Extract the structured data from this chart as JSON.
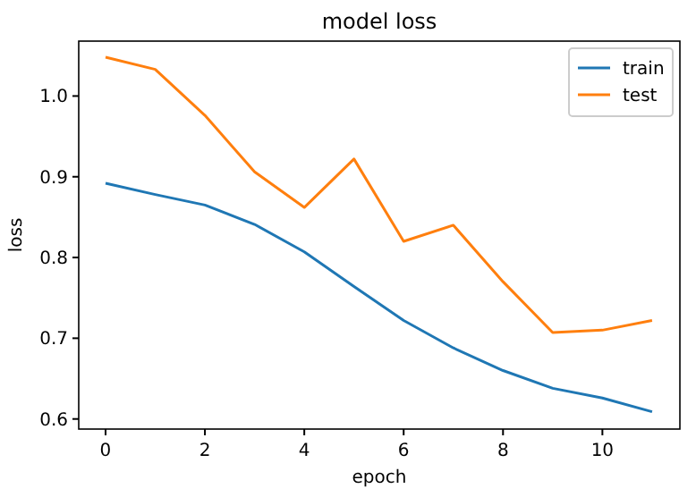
{
  "chart_data": {
    "type": "line",
    "title": "model loss",
    "xlabel": "epoch",
    "ylabel": "loss",
    "x": [
      0,
      1,
      2,
      3,
      4,
      5,
      6,
      7,
      8,
      9,
      10,
      11
    ],
    "series": [
      {
        "name": "train",
        "color": "#1f77b4",
        "values": [
          0.892,
          0.878,
          0.865,
          0.841,
          0.807,
          0.764,
          0.722,
          0.688,
          0.66,
          0.638,
          0.626,
          0.609
        ]
      },
      {
        "name": "test",
        "color": "#ff7f0e",
        "values": [
          1.048,
          1.033,
          0.976,
          0.906,
          0.862,
          0.922,
          0.82,
          0.84,
          0.77,
          0.707,
          0.71,
          0.722
        ]
      }
    ],
    "xlim": [
      -0.54,
      11.56
    ],
    "xticks": [
      0,
      2,
      4,
      6,
      8,
      10
    ],
    "ylim": [
      0.5875,
      1.068
    ],
    "yticks": [
      {
        "value": 0.6,
        "label": "0.6"
      },
      {
        "value": 0.7,
        "label": "0.7"
      },
      {
        "value": 0.8,
        "label": "0.8"
      },
      {
        "value": 0.9,
        "label": "0.9"
      },
      {
        "value": 1.0,
        "label": "1.0"
      }
    ],
    "legend": "top right",
    "grid": false
  }
}
